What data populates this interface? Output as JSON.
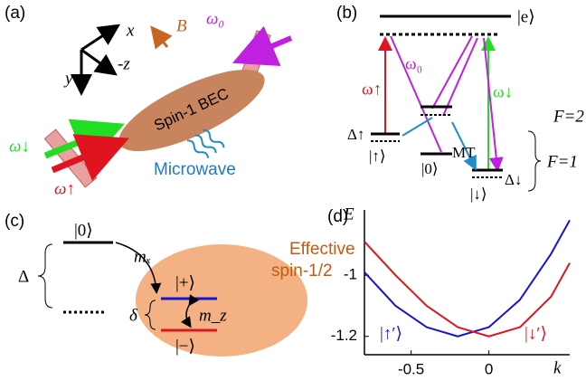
{
  "panel_a": {
    "label": "(a)",
    "axis_x": "x",
    "axis_y": "y",
    "axis_z": "-z",
    "field": "B",
    "omega_0": "ω₀",
    "bec": "Spin-1 BEC",
    "microwave": "Microwave",
    "omega_down": "ω↓",
    "omega_up": "ω↑"
  },
  "panel_b": {
    "label": "(b)",
    "excited": "|e⟩",
    "omega_0": "ω₀",
    "omega_up": "ω↑",
    "omega_down": "ω↓",
    "f2": "F=2",
    "f1": "F=1",
    "delta_up": "Δ↑",
    "state_up": "|↑⟩",
    "state_0": "|0⟩",
    "mt": "MT",
    "delta_down": "Δ↓",
    "state_down": "|↓⟩"
  },
  "panel_c": {
    "label": "(c)",
    "state_0": "|0⟩",
    "m_x": "mₓ",
    "effective": [
      "Effective",
      "spin-1/2"
    ],
    "big_delta": "Δ",
    "small_delta": "δ",
    "state_plus": "|+⟩",
    "m_z": "m_z",
    "state_minus": "|−⟩"
  },
  "chart_data": {
    "type": "line",
    "label": "(d)",
    "y_label": "E",
    "x_label": "k",
    "x": [
      -0.8,
      -0.6,
      -0.4,
      -0.2,
      0,
      0.2,
      0.4,
      0.52
    ],
    "series": [
      {
        "name": "|↑′⟩",
        "color": "#1414d2",
        "values": [
          -0.99,
          -1.1,
          -1.17,
          -1.2,
          -1.17,
          -1.08,
          -0.93,
          -0.82
        ]
      },
      {
        "name": "|↓′⟩",
        "color": "#e0141e",
        "values": [
          -0.89,
          -1.0,
          -1.1,
          -1.17,
          -1.2,
          -1.17,
          -1.07,
          -0.96
        ]
      }
    ],
    "xlim": [
      -0.8,
      0.52
    ],
    "ylim": [
      -1.26,
      -0.81
    ],
    "xticks": [
      -0.5,
      0
    ],
    "yticks": [
      -1,
      -1.2
    ]
  }
}
